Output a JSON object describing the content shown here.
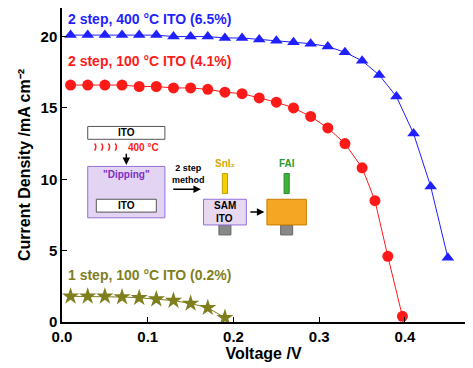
{
  "chart_data": {
    "type": "line",
    "x_label": "Voltage /V",
    "y_label": "Current Density /mA cm⁻²",
    "xlim": [
      0,
      0.47
    ],
    "ylim": [
      0,
      22
    ],
    "xticks": [
      {
        "value": 0,
        "label": "0.0"
      },
      {
        "value": 0.1,
        "label": "0.1"
      },
      {
        "value": 0.2,
        "label": "0.2"
      },
      {
        "value": 0.3,
        "label": "0.3"
      },
      {
        "value": 0.4,
        "label": "0.4"
      }
    ],
    "yticks": [
      0,
      5,
      10,
      15,
      20
    ],
    "grid": false,
    "series": [
      {
        "name": "2 step, 400 °C ITO (6.5%)",
        "color": "#1f1fff",
        "marker": "triangle-up",
        "line_style": "solid",
        "x": [
          0.01,
          0.03,
          0.05,
          0.07,
          0.09,
          0.11,
          0.13,
          0.15,
          0.17,
          0.19,
          0.21,
          0.23,
          0.25,
          0.27,
          0.29,
          0.31,
          0.33,
          0.35,
          0.37,
          0.39,
          0.41,
          0.43,
          0.45
        ],
        "values": [
          20.1,
          20.1,
          20.1,
          20.1,
          20.1,
          20.1,
          20.0,
          20.0,
          20.0,
          19.9,
          19.9,
          19.8,
          19.7,
          19.6,
          19.5,
          19.3,
          18.9,
          18.3,
          17.3,
          15.8,
          13.2,
          9.5,
          4.5
        ]
      },
      {
        "name": "2 step, 100 °C ITO (4.1%)",
        "color": "#ff1a1a",
        "marker": "circle",
        "line_style": "solid",
        "x": [
          0.01,
          0.03,
          0.05,
          0.07,
          0.09,
          0.11,
          0.13,
          0.15,
          0.17,
          0.19,
          0.21,
          0.23,
          0.25,
          0.27,
          0.29,
          0.31,
          0.33,
          0.35,
          0.365,
          0.38,
          0.397
        ],
        "values": [
          16.6,
          16.6,
          16.6,
          16.6,
          16.5,
          16.5,
          16.4,
          16.4,
          16.3,
          16.1,
          16.0,
          15.7,
          15.4,
          15.0,
          14.4,
          13.6,
          12.5,
          10.8,
          8.5,
          4.6,
          0.4
        ]
      },
      {
        "name": "1 step, 100 °C ITO (0.2%)",
        "color": "#7f7f1f",
        "marker": "star",
        "line_style": "solid",
        "x": [
          0.01,
          0.03,
          0.05,
          0.07,
          0.09,
          0.11,
          0.13,
          0.15,
          0.17,
          0.19
        ],
        "values": [
          1.8,
          1.8,
          1.8,
          1.75,
          1.7,
          1.6,
          1.5,
          1.3,
          1.0,
          0.3
        ]
      }
    ]
  },
  "inset": {
    "top_slab": "ITO",
    "temperature": "400 °C",
    "dipping": "\"Dipping\"",
    "dipped_slab": "ITO",
    "method": "2 step method",
    "precursor_1": "SnI₂",
    "layer": "SAM",
    "substrate": "ITO",
    "precursor_2": "FAI"
  }
}
